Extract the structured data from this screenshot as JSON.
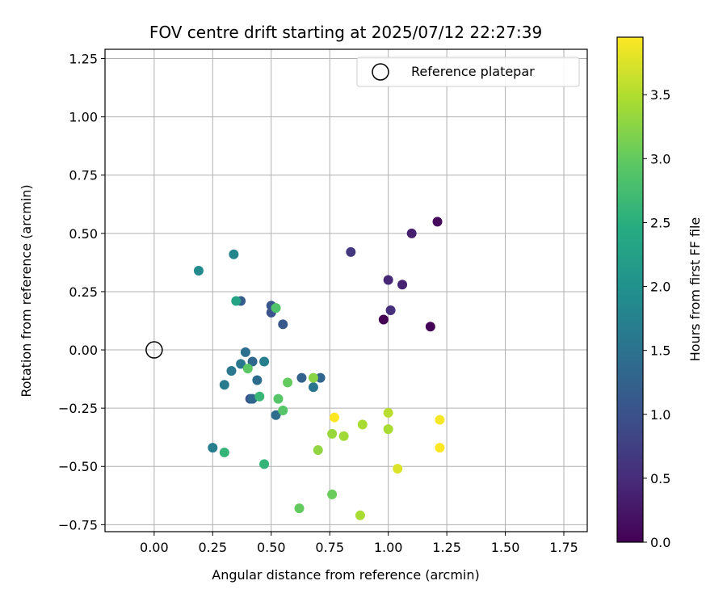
{
  "chart_data": {
    "type": "scatter",
    "title": "FOV centre drift starting at 2025/07/12 22:27:39",
    "xlabel": "Angular distance from reference (arcmin)",
    "ylabel": "Rotation from reference (arcmin)",
    "xlim": [
      -0.21,
      1.85
    ],
    "ylim": [
      -0.78,
      1.29
    ],
    "xticks": [
      0.0,
      0.25,
      0.5,
      0.75,
      1.0,
      1.25,
      1.5,
      1.75
    ],
    "xtick_labels": [
      "0.00",
      "0.25",
      "0.50",
      "0.75",
      "1.00",
      "1.25",
      "1.50",
      "1.75"
    ],
    "yticks": [
      -0.75,
      -0.5,
      -0.25,
      0.0,
      0.25,
      0.5,
      0.75,
      1.0,
      1.25
    ],
    "ytick_labels": [
      "−0.75",
      "−0.50",
      "−0.25",
      "0.00",
      "0.25",
      "0.50",
      "0.75",
      "1.00",
      "1.25"
    ],
    "grid": true,
    "legend": {
      "position": "top-right",
      "entries": [
        {
          "label": "Reference platepar",
          "marker": "open-circle"
        }
      ]
    },
    "reference_point": {
      "x": 0.0,
      "y": 0.0,
      "label": "Reference platepar"
    },
    "colorbar": {
      "label": "Hours from first FF file",
      "colormap": "viridis",
      "range": [
        0.0,
        3.95
      ],
      "ticks": [
        0.0,
        0.5,
        1.0,
        1.5,
        2.0,
        2.5,
        3.0,
        3.5
      ],
      "tick_labels": [
        "0.0",
        "0.5",
        "1.0",
        "1.5",
        "2.0",
        "2.5",
        "3.0",
        "3.5"
      ]
    },
    "series": [
      {
        "points": [
          {
            "x": 0.98,
            "y": 0.13,
            "c": 0.0
          },
          {
            "x": 1.18,
            "y": 0.1,
            "c": 0.05
          },
          {
            "x": 1.21,
            "y": 0.55,
            "c": 0.1
          },
          {
            "x": 1.1,
            "y": 0.5,
            "c": 0.35
          },
          {
            "x": 1.06,
            "y": 0.28,
            "c": 0.4
          },
          {
            "x": 1.0,
            "y": 0.3,
            "c": 0.45
          },
          {
            "x": 1.01,
            "y": 0.17,
            "c": 0.55
          },
          {
            "x": 0.84,
            "y": 0.42,
            "c": 0.65
          },
          {
            "x": 0.5,
            "y": 0.16,
            "c": 1.0
          },
          {
            "x": 0.5,
            "y": 0.19,
            "c": 1.05
          },
          {
            "x": 0.55,
            "y": 0.11,
            "c": 1.1
          },
          {
            "x": 0.41,
            "y": -0.21,
            "c": 1.05
          },
          {
            "x": 0.37,
            "y": 0.21,
            "c": 1.15
          },
          {
            "x": 0.63,
            "y": -0.12,
            "c": 1.25
          },
          {
            "x": 0.71,
            "y": -0.12,
            "c": 1.3
          },
          {
            "x": 0.42,
            "y": -0.05,
            "c": 1.35
          },
          {
            "x": 0.39,
            "y": -0.01,
            "c": 1.45
          },
          {
            "x": 0.44,
            "y": -0.13,
            "c": 1.4
          },
          {
            "x": 0.52,
            "y": -0.28,
            "c": 1.4
          },
          {
            "x": 0.42,
            "y": -0.21,
            "c": 1.35
          },
          {
            "x": 0.33,
            "y": -0.09,
            "c": 1.6
          },
          {
            "x": 0.37,
            "y": -0.06,
            "c": 1.6
          },
          {
            "x": 0.3,
            "y": -0.15,
            "c": 1.65
          },
          {
            "x": 0.47,
            "y": -0.05,
            "c": 1.7
          },
          {
            "x": 0.68,
            "y": -0.16,
            "c": 1.55
          },
          {
            "x": 0.25,
            "y": -0.42,
            "c": 1.7
          },
          {
            "x": 0.34,
            "y": 0.41,
            "c": 1.8
          },
          {
            "x": 0.19,
            "y": 0.34,
            "c": 1.9
          },
          {
            "x": 0.35,
            "y": 0.21,
            "c": 2.3
          },
          {
            "x": 0.3,
            "y": -0.44,
            "c": 2.6
          },
          {
            "x": 0.47,
            "y": -0.49,
            "c": 2.6
          },
          {
            "x": 0.45,
            "y": -0.2,
            "c": 2.65
          },
          {
            "x": 0.52,
            "y": 0.18,
            "c": 2.85
          },
          {
            "x": 0.53,
            "y": -0.21,
            "c": 2.9
          },
          {
            "x": 0.55,
            "y": -0.26,
            "c": 2.9
          },
          {
            "x": 0.4,
            "y": -0.08,
            "c": 2.95
          },
          {
            "x": 0.57,
            "y": -0.14,
            "c": 3.0
          },
          {
            "x": 0.62,
            "y": -0.68,
            "c": 3.0
          },
          {
            "x": 0.76,
            "y": -0.62,
            "c": 3.05
          },
          {
            "x": 0.68,
            "y": -0.12,
            "c": 3.25
          },
          {
            "x": 0.7,
            "y": -0.43,
            "c": 3.3
          },
          {
            "x": 0.76,
            "y": -0.36,
            "c": 3.35
          },
          {
            "x": 0.81,
            "y": -0.37,
            "c": 3.4
          },
          {
            "x": 0.88,
            "y": -0.71,
            "c": 3.45
          },
          {
            "x": 0.89,
            "y": -0.32,
            "c": 3.45
          },
          {
            "x": 1.0,
            "y": -0.34,
            "c": 3.45
          },
          {
            "x": 1.0,
            "y": -0.27,
            "c": 3.55
          },
          {
            "x": 1.04,
            "y": -0.51,
            "c": 3.75
          },
          {
            "x": 0.77,
            "y": -0.29,
            "c": 3.95
          },
          {
            "x": 1.22,
            "y": -0.3,
            "c": 3.9
          },
          {
            "x": 1.22,
            "y": -0.42,
            "c": 3.95
          }
        ]
      }
    ]
  }
}
